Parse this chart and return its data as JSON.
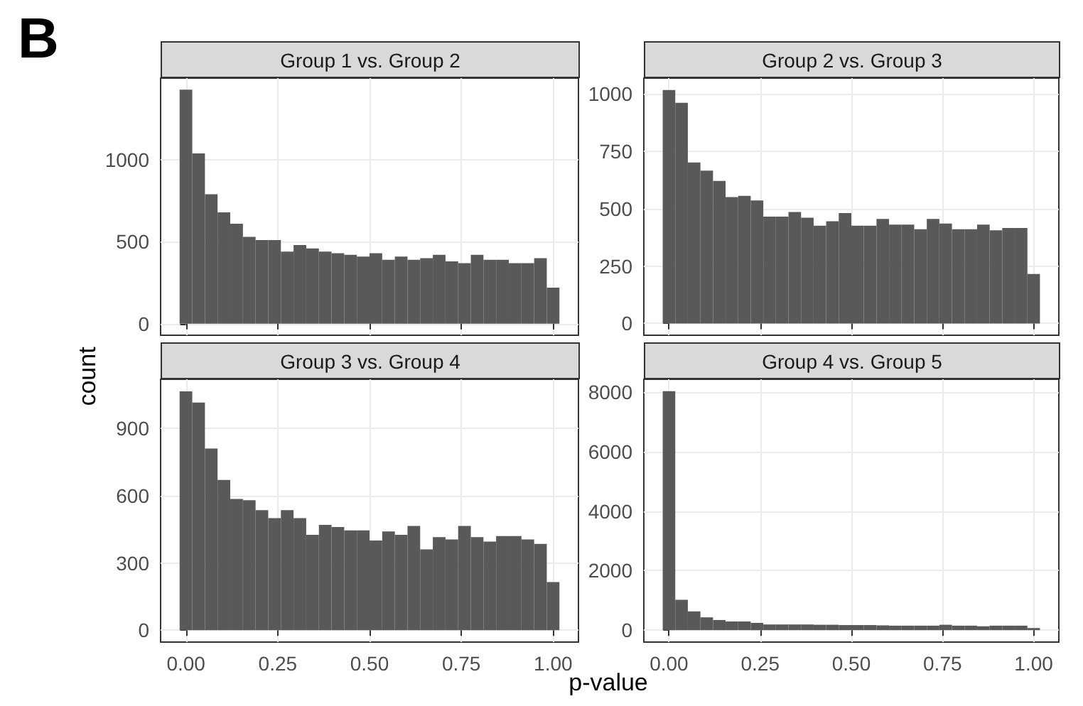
{
  "chart_data": [
    {
      "type": "histogram",
      "title": "Group 1 vs. Group 2",
      "ylabel": "count",
      "annotations": [
        "B"
      ],
      "color": "#595959",
      "grid": true,
      "tick_labels": "y",
      "bins": [
        -0.0172,
        0.0172,
        0.0517,
        0.0862,
        0.1207,
        0.1552,
        0.1897,
        0.2241,
        0.2586,
        0.2931,
        0.3276,
        0.3621,
        0.3966,
        0.431,
        0.4655,
        0.5,
        0.5345,
        0.569,
        0.6034,
        0.6379,
        0.6724,
        0.7069,
        0.7414,
        0.7759,
        0.8103,
        0.8448,
        0.8793,
        0.9138,
        0.9483,
        0.9828,
        1.0172
      ],
      "values": [
        1430,
        1040,
        790,
        680,
        610,
        530,
        510,
        510,
        440,
        480,
        460,
        440,
        430,
        420,
        410,
        430,
        390,
        410,
        390,
        400,
        420,
        380,
        370,
        420,
        390,
        390,
        370,
        370,
        400,
        220
      ],
      "xlim": [
        -0.069,
        1.069
      ],
      "xticks": [
        {
          "value": 0,
          "label": null
        },
        {
          "value": 0.25,
          "label": null
        },
        {
          "value": 0.5,
          "label": null
        },
        {
          "value": 0.75,
          "label": null
        },
        {
          "value": 1,
          "label": null
        }
      ],
      "ylim": [
        -71,
        1500
      ],
      "yticks": [
        0,
        500,
        1000
      ]
    },
    {
      "type": "histogram",
      "title": "Group 2 vs. Group 3",
      "color": "#595959",
      "grid": true,
      "tick_labels": "y",
      "bins": [
        -0.0172,
        0.0172,
        0.0517,
        0.0862,
        0.1207,
        0.1552,
        0.1897,
        0.2241,
        0.2586,
        0.2931,
        0.3276,
        0.3621,
        0.3966,
        0.431,
        0.4655,
        0.5,
        0.5345,
        0.569,
        0.6034,
        0.6379,
        0.6724,
        0.7069,
        0.7414,
        0.7759,
        0.8103,
        0.8448,
        0.8793,
        0.9138,
        0.9483,
        0.9828,
        1.0172
      ],
      "values": [
        1015,
        960,
        700,
        665,
        620,
        550,
        555,
        535,
        465,
        465,
        485,
        460,
        425,
        445,
        480,
        425,
        425,
        455,
        430,
        430,
        410,
        455,
        435,
        410,
        410,
        430,
        405,
        415,
        415,
        215
      ],
      "xlim": [
        -0.069,
        1.069
      ],
      "xticks": [
        {
          "value": 0,
          "label": null
        },
        {
          "value": 0.25,
          "label": null
        },
        {
          "value": 0.5,
          "label": null
        },
        {
          "value": 0.75,
          "label": null
        },
        {
          "value": 1,
          "label": null
        }
      ],
      "ylim": [
        -51,
        1067
      ],
      "yticks": [
        0,
        250,
        500,
        750,
        1000
      ]
    },
    {
      "type": "histogram",
      "title": "Group 3 vs. Group 4",
      "xlabel": "p-value",
      "color": "#595959",
      "grid": true,
      "bins": [
        -0.0172,
        0.0172,
        0.0517,
        0.0862,
        0.1207,
        0.1552,
        0.1897,
        0.2241,
        0.2586,
        0.2931,
        0.3276,
        0.3621,
        0.3966,
        0.431,
        0.4655,
        0.5,
        0.5345,
        0.569,
        0.6034,
        0.6379,
        0.6724,
        0.7069,
        0.7414,
        0.7759,
        0.8103,
        0.8448,
        0.8793,
        0.9138,
        0.9483,
        0.9828,
        1.0172
      ],
      "values": [
        1065,
        1015,
        810,
        670,
        585,
        580,
        535,
        500,
        535,
        500,
        425,
        470,
        460,
        445,
        445,
        400,
        440,
        425,
        465,
        360,
        415,
        405,
        465,
        415,
        395,
        420,
        420,
        405,
        385,
        215
      ],
      "xlim": [
        -0.069,
        1.069
      ],
      "xticks": [
        {
          "value": 0,
          "label": "0.00"
        },
        {
          "value": 0.25,
          "label": "0.25"
        },
        {
          "value": 0.5,
          "label": "0.50"
        },
        {
          "value": 0.75,
          "label": "0.75"
        },
        {
          "value": 1,
          "label": "1.00"
        }
      ],
      "ylim": [
        -53,
        1119
      ],
      "yticks": [
        0,
        300,
        600,
        900
      ]
    },
    {
      "type": "histogram",
      "title": "Group 4 vs. Group 5",
      "color": "#595959",
      "grid": true,
      "bins": [
        -0.0172,
        0.0172,
        0.0517,
        0.0862,
        0.1207,
        0.1552,
        0.1897,
        0.2241,
        0.2586,
        0.2931,
        0.3276,
        0.3621,
        0.3966,
        0.431,
        0.4655,
        0.5,
        0.5345,
        0.569,
        0.6034,
        0.6379,
        0.6724,
        0.7069,
        0.7414,
        0.7759,
        0.8103,
        0.8448,
        0.8793,
        0.9138,
        0.9483,
        0.9828,
        1.0172
      ],
      "values": [
        8030,
        1020,
        630,
        430,
        340,
        290,
        290,
        240,
        190,
        190,
        190,
        190,
        180,
        180,
        170,
        170,
        170,
        160,
        150,
        150,
        150,
        150,
        180,
        150,
        150,
        130,
        150,
        150,
        150,
        70
      ],
      "xlim": [
        -0.069,
        1.069
      ],
      "xticks": [
        {
          "value": 0,
          "label": "0.00"
        },
        {
          "value": 0.25,
          "label": "0.25"
        },
        {
          "value": 0.5,
          "label": "0.50"
        },
        {
          "value": 0.75,
          "label": "0.75"
        },
        {
          "value": 1,
          "label": "1.00"
        }
      ],
      "ylim": [
        -402,
        8432
      ],
      "yticks": [
        0,
        2000,
        4000,
        6000,
        8000
      ]
    }
  ]
}
